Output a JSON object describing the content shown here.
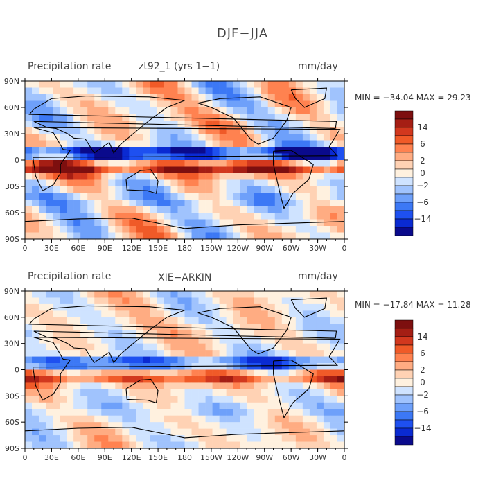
{
  "title": "DJF−JJA",
  "colors": {
    "scale": [
      "#0a0a8c",
      "#0a2ad2",
      "#1e50f0",
      "#3c78f5",
      "#6ea0fa",
      "#a0c3fd",
      "#cfe3ff",
      "#fff1df",
      "#ffd2b4",
      "#ffac82",
      "#ff8250",
      "#f05a28",
      "#d2381e",
      "#a51e14",
      "#7d0f0f"
    ],
    "coast": "#000000"
  },
  "scale_labels": [
    "14",
    "6",
    "2",
    "0",
    "−2",
    "−6",
    "−14"
  ],
  "x_ticks": [
    "0",
    "30E",
    "60E",
    "90E",
    "120E",
    "150E",
    "180",
    "150W",
    "120W",
    "90W",
    "60W",
    "30W",
    "0"
  ],
  "y_ticks": [
    "90N",
    "60N",
    "30N",
    "0",
    "30S",
    "60S",
    "90S"
  ],
  "panels": [
    {
      "variable": "Precipitation rate",
      "source": "zt92_1 (yrs 1−1)",
      "units": "mm/day",
      "stats": "MIN = −34.04 MAX =  29.23",
      "min": -34.04,
      "max": 29.23
    },
    {
      "variable": "Precipitation rate",
      "source": "XIE−ARKIN",
      "units": "mm/day",
      "stats": "MIN = −17.84 MAX =  11.28",
      "min": -17.84,
      "max": 11.28
    }
  ]
}
